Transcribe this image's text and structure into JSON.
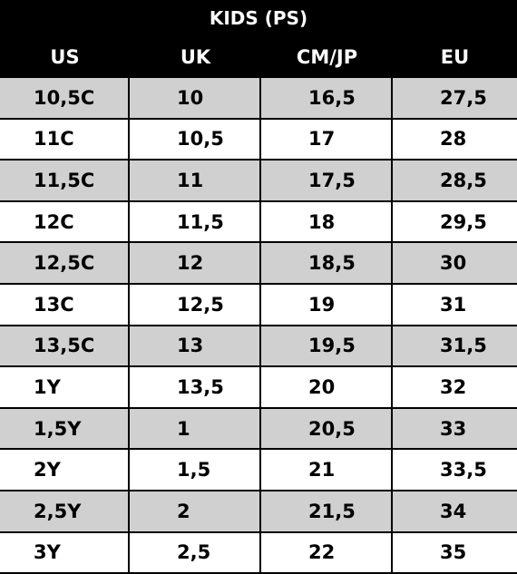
{
  "header": {
    "title": "KIDS (PS)"
  },
  "table": {
    "columns": [
      "US",
      "UK",
      "CM/JP",
      "EU"
    ],
    "rows": [
      [
        "10,5C",
        "10",
        "16,5",
        "27,5"
      ],
      [
        "11C",
        "10,5",
        "17",
        "28"
      ],
      [
        "11,5C",
        "11",
        "17,5",
        "28,5"
      ],
      [
        "12C",
        "11,5",
        "18",
        "29,5"
      ],
      [
        "12,5C",
        "12",
        "18,5",
        "30"
      ],
      [
        "13C",
        "12,5",
        "19",
        "31"
      ],
      [
        "13,5C",
        "13",
        "19,5",
        "31,5"
      ],
      [
        "1Y",
        "13,5",
        "20",
        "32"
      ],
      [
        "1,5Y",
        "1",
        "20,5",
        "33"
      ],
      [
        "2Y",
        "1,5",
        "21",
        "33,5"
      ],
      [
        "2,5Y",
        "2",
        "21,5",
        "34"
      ],
      [
        "3Y",
        "2,5",
        "22",
        "35"
      ]
    ]
  }
}
